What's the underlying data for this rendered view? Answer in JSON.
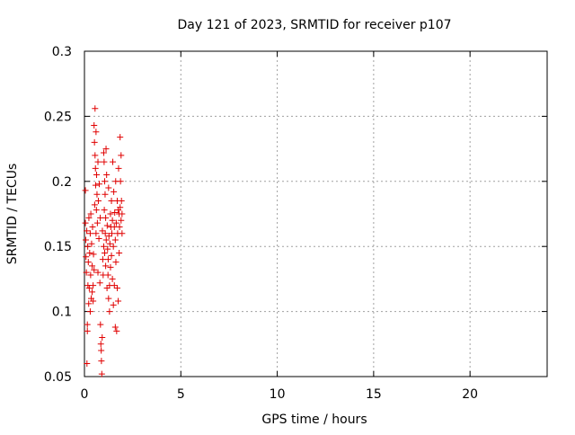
{
  "chart_data": {
    "type": "scatter",
    "title": "Day 121 of 2023, SRMTID for receiver p107",
    "xlabel": "GPS time / hours",
    "ylabel": "SRMTID / TECUs",
    "xlim": [
      0,
      24
    ],
    "ylim": [
      0.05,
      0.3
    ],
    "xticks": [
      0,
      5,
      10,
      15,
      20
    ],
    "xtick_labels": [
      "0",
      "5",
      "10",
      "15",
      "20"
    ],
    "yticks": [
      0.05,
      0.1,
      0.15,
      0.2,
      0.25,
      0.3
    ],
    "ytick_labels": [
      "0.05",
      "0.1",
      "0.15",
      "0.2",
      "0.25",
      "0.3"
    ],
    "grid": true,
    "marker": "+",
    "series": [
      {
        "name": "p107",
        "color": "#e00000",
        "points": [
          [
            0.05,
            0.193
          ],
          [
            0.05,
            0.168
          ],
          [
            0.07,
            0.155
          ],
          [
            0.08,
            0.142
          ],
          [
            0.1,
            0.13
          ],
          [
            0.12,
            0.162
          ],
          [
            0.13,
            0.06
          ],
          [
            0.15,
            0.085
          ],
          [
            0.15,
            0.09
          ],
          [
            0.17,
            0.15
          ],
          [
            0.18,
            0.12
          ],
          [
            0.2,
            0.138
          ],
          [
            0.22,
            0.106
          ],
          [
            0.23,
            0.172
          ],
          [
            0.25,
            0.118
          ],
          [
            0.27,
            0.145
          ],
          [
            0.3,
            0.16
          ],
          [
            0.3,
            0.1
          ],
          [
            0.32,
            0.128
          ],
          [
            0.33,
            0.175
          ],
          [
            0.35,
            0.11
          ],
          [
            0.37,
            0.152
          ],
          [
            0.4,
            0.135
          ],
          [
            0.4,
            0.115
          ],
          [
            0.42,
            0.165
          ],
          [
            0.45,
            0.12
          ],
          [
            0.45,
            0.108
          ],
          [
            0.47,
            0.144
          ],
          [
            0.5,
            0.243
          ],
          [
            0.5,
            0.132
          ],
          [
            0.52,
            0.23
          ],
          [
            0.53,
            0.182
          ],
          [
            0.55,
            0.22
          ],
          [
            0.55,
            0.256
          ],
          [
            0.57,
            0.21
          ],
          [
            0.58,
            0.197
          ],
          [
            0.6,
            0.238
          ],
          [
            0.6,
            0.16
          ],
          [
            0.62,
            0.178
          ],
          [
            0.63,
            0.205
          ],
          [
            0.65,
            0.19
          ],
          [
            0.67,
            0.168
          ],
          [
            0.7,
            0.215
          ],
          [
            0.7,
            0.13
          ],
          [
            0.72,
            0.185
          ],
          [
            0.75,
            0.156
          ],
          [
            0.77,
            0.198
          ],
          [
            0.8,
            0.122
          ],
          [
            0.82,
            0.172
          ],
          [
            0.83,
            0.09
          ],
          [
            0.85,
            0.075
          ],
          [
            0.87,
            0.07
          ],
          [
            0.88,
            0.062
          ],
          [
            0.9,
            0.052
          ],
          [
            0.92,
            0.08
          ],
          [
            0.93,
            0.162
          ],
          [
            0.95,
            0.14
          ],
          [
            0.97,
            0.128
          ],
          [
            1.0,
            0.222
          ],
          [
            1.0,
            0.15
          ],
          [
            1.02,
            0.215
          ],
          [
            1.03,
            0.178
          ],
          [
            1.05,
            0.2
          ],
          [
            1.05,
            0.145
          ],
          [
            1.07,
            0.19
          ],
          [
            1.08,
            0.16
          ],
          [
            1.1,
            0.172
          ],
          [
            1.1,
            0.135
          ],
          [
            1.12,
            0.225
          ],
          [
            1.13,
            0.155
          ],
          [
            1.15,
            0.205
          ],
          [
            1.17,
            0.118
          ],
          [
            1.18,
            0.166
          ],
          [
            1.2,
            0.148
          ],
          [
            1.22,
            0.128
          ],
          [
            1.23,
            0.14
          ],
          [
            1.25,
            0.195
          ],
          [
            1.25,
            0.11
          ],
          [
            1.27,
            0.158
          ],
          [
            1.3,
            0.12
          ],
          [
            1.3,
            0.1
          ],
          [
            1.32,
            0.152
          ],
          [
            1.35,
            0.175
          ],
          [
            1.35,
            0.134
          ],
          [
            1.37,
            0.165
          ],
          [
            1.4,
            0.185
          ],
          [
            1.4,
            0.143
          ],
          [
            1.42,
            0.16
          ],
          [
            1.45,
            0.17
          ],
          [
            1.45,
            0.125
          ],
          [
            1.47,
            0.215
          ],
          [
            1.5,
            0.15
          ],
          [
            1.5,
            0.105
          ],
          [
            1.52,
            0.192
          ],
          [
            1.55,
            0.165
          ],
          [
            1.55,
            0.12
          ],
          [
            1.57,
            0.176
          ],
          [
            1.6,
            0.155
          ],
          [
            1.6,
            0.088
          ],
          [
            1.62,
            0.2
          ],
          [
            1.63,
            0.138
          ],
          [
            1.65,
            0.168
          ],
          [
            1.67,
            0.085
          ],
          [
            1.7,
            0.185
          ],
          [
            1.7,
            0.118
          ],
          [
            1.72,
            0.16
          ],
          [
            1.75,
            0.178
          ],
          [
            1.75,
            0.108
          ],
          [
            1.77,
            0.21
          ],
          [
            1.8,
            0.175
          ],
          [
            1.8,
            0.145
          ],
          [
            1.82,
            0.165
          ],
          [
            1.85,
            0.234
          ],
          [
            1.85,
            0.18
          ],
          [
            1.87,
            0.2
          ],
          [
            1.9,
            0.17
          ],
          [
            1.9,
            0.22
          ],
          [
            1.92,
            0.185
          ],
          [
            1.95,
            0.175
          ],
          [
            1.95,
            0.16
          ]
        ]
      }
    ]
  }
}
